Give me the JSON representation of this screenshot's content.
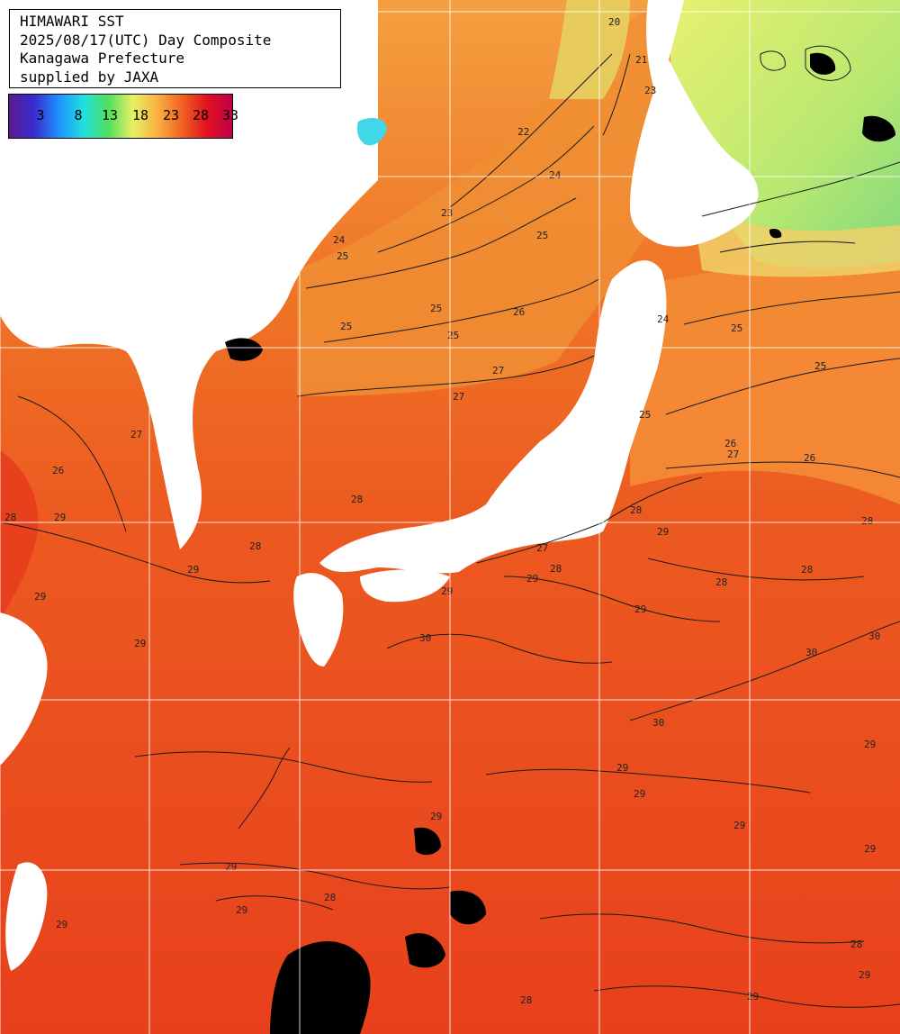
{
  "header": {
    "line1": "HIMAWARI SST",
    "line2": "2025/08/17(UTC) Day Composite",
    "line3": "Kanagawa Prefecture",
    "line4": "supplied by JAXA"
  },
  "legend": {
    "ticks": [
      "3",
      "8",
      "13",
      "18",
      "23",
      "28",
      "33"
    ],
    "colors": [
      "#5a1a8c",
      "#3a2ad0",
      "#1e90ff",
      "#20e0e0",
      "#50e060",
      "#e8f060",
      "#f8b040",
      "#f06020",
      "#e01020",
      "#c0004a"
    ]
  },
  "map": {
    "palette": {
      "ocean_warm": "#e8401c",
      "ocean_mid": "#f06a22",
      "ocean_cool": "#f4a040",
      "ocean_cold": "#e8e070",
      "ocean_coldest": "#9ee070",
      "land": "#ffffff",
      "cloud": "#000000",
      "grid": "#ffffff",
      "contour": "#1a1a1a"
    },
    "contour_labels": [
      "22",
      "23",
      "24",
      "25",
      "26",
      "27",
      "28",
      "29",
      "30"
    ]
  }
}
